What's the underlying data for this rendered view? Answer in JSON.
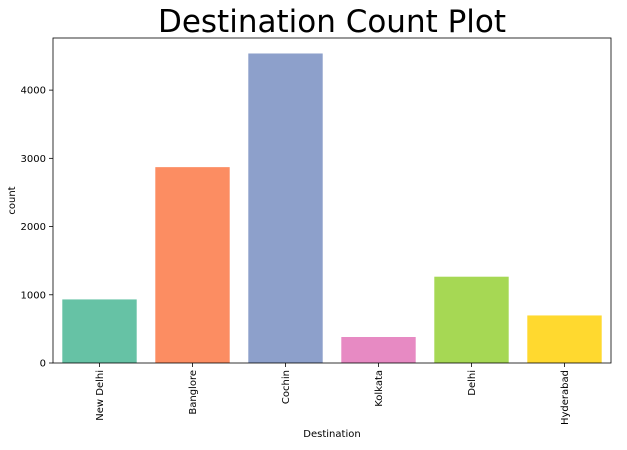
{
  "chart_data": {
    "type": "bar",
    "title": "Destination Count Plot",
    "xlabel": "Destination",
    "ylabel": "count",
    "categories": [
      "New Delhi",
      "Banglore",
      "Cochin",
      "Kolkata",
      "Delhi",
      "Hyderabad"
    ],
    "values": [
      932,
      2871,
      4537,
      381,
      1265,
      697
    ],
    "colors": [
      "#66c2a5",
      "#fc8d62",
      "#8da0cb",
      "#e78ac3",
      "#a6d854",
      "#ffd92f"
    ],
    "ylim": [
      0,
      4764
    ],
    "yticks": [
      0,
      1000,
      2000,
      3000,
      4000
    ],
    "grid": false,
    "legend": "none"
  }
}
